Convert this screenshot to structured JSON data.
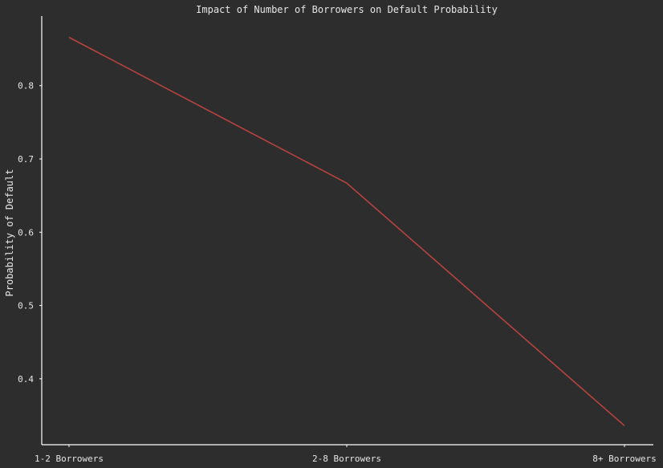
{
  "chart_data": {
    "type": "line",
    "title": "Impact of Number of Borrowers on Default Probability",
    "xlabel": "",
    "ylabel": "Probability of Default",
    "categories": [
      "1-2 Borrowers",
      "2-8 Borrowers",
      "8+ Borrowers"
    ],
    "series": [
      {
        "values": [
          0.866,
          0.667,
          0.336
        ],
        "color": "#b5433f"
      }
    ],
    "yticks": [
      "0.4",
      "0.5",
      "0.6",
      "0.7",
      "0.8"
    ],
    "ylim": [
      0.31,
      0.895
    ],
    "grid": false,
    "legend": "none",
    "colors": {
      "background": "#2d2d2d",
      "axis": "#ffffff",
      "text": "#e6e6e6",
      "line": "#b5433f"
    }
  }
}
